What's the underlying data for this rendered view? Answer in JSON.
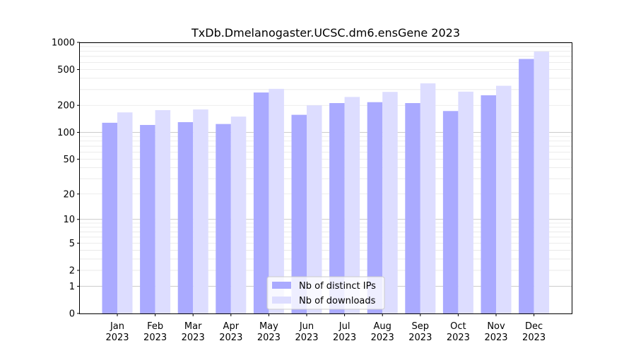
{
  "chart_data": {
    "type": "bar",
    "title": "TxDb.Dmelanogaster.UCSC.dm6.ensGene 2023",
    "xlabel": "",
    "ylabel": "",
    "y_scale": "symlog",
    "ylim": [
      0,
      1000
    ],
    "y_ticks": [
      0,
      1,
      2,
      5,
      10,
      20,
      50,
      100,
      200,
      500,
      1000
    ],
    "categories": [
      "Jan\n2023",
      "Feb\n2023",
      "Mar\n2023",
      "Apr\n2023",
      "May\n2023",
      "Jun\n2023",
      "Jul\n2023",
      "Aug\n2023",
      "Sep\n2023",
      "Oct\n2023",
      "Nov\n2023",
      "Dec\n2023"
    ],
    "series": [
      {
        "name": "Nb of distinct IPs",
        "color": "#aaaaff",
        "values": [
          128,
          121,
          130,
          124,
          278,
          157,
          212,
          217,
          212,
          173,
          259,
          655
        ]
      },
      {
        "name": "Nb of downloads",
        "color": "#ddddff",
        "values": [
          167,
          177,
          180,
          150,
          305,
          200,
          248,
          282,
          351,
          284,
          330,
          790
        ]
      }
    ],
    "grid": true,
    "legend_position": "bottom-center"
  }
}
